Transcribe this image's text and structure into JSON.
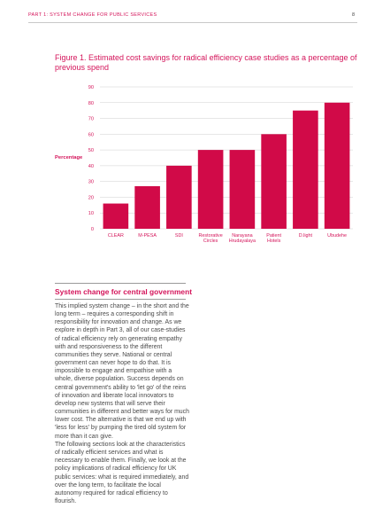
{
  "header": {
    "running_title": "PART 1: SYSTEM CHANGE FOR PUBLIC SERVICES",
    "page_number": "8"
  },
  "figure": {
    "title": "Figure 1. Estimated cost savings for radical efficiency case studies as a percentage of previous spend"
  },
  "chart_data": {
    "type": "bar",
    "categories": [
      [
        "CLEAR"
      ],
      [
        "M-PESA"
      ],
      [
        "SDI"
      ],
      [
        "Restorative",
        "Circles"
      ],
      [
        "Narayana",
        "Hrudayalaya"
      ],
      [
        "Patient",
        "Hotels"
      ],
      [
        "D.light"
      ],
      [
        "Ubudehe"
      ]
    ],
    "values": [
      16,
      27,
      40,
      50,
      50,
      60,
      75,
      80
    ],
    "ylabel": "Percentage",
    "ylim": [
      0,
      90
    ],
    "yticks": [
      0,
      10,
      20,
      30,
      40,
      50,
      60,
      70,
      80,
      90
    ],
    "grid": true,
    "bar_color": "#d10a48",
    "grid_color": "#cfcfcf"
  },
  "section": {
    "title": "System change for central government",
    "paragraphs": [
      "This implied system change – in the short and the long term – requires a corresponding shift in responsibility for innovation and change. As we explore in depth in Part 3, all of our case-studies of radical efficiency rely on generating empathy with and responsiveness to the different communities they serve. National or central government can never hope to do that. It is impossible to engage and empathise with a whole, diverse population. Success depends on central government's ability to 'let go' of the reins of innovation and liberate local innovators to develop new systems that will serve their communities in different and better ways for much lower cost. The alternative is that we end up with 'less for less' by pumping the tired old system for more than it can give.",
      "The following sections look at the characteristics of radically efficient services and what is necessary to enable them. Finally, we look at the policy implications of radical efficiency for UK public services: what is required immediately, and over the long term, to facilitate the local autonomy required for radical efficiency to flourish."
    ]
  }
}
